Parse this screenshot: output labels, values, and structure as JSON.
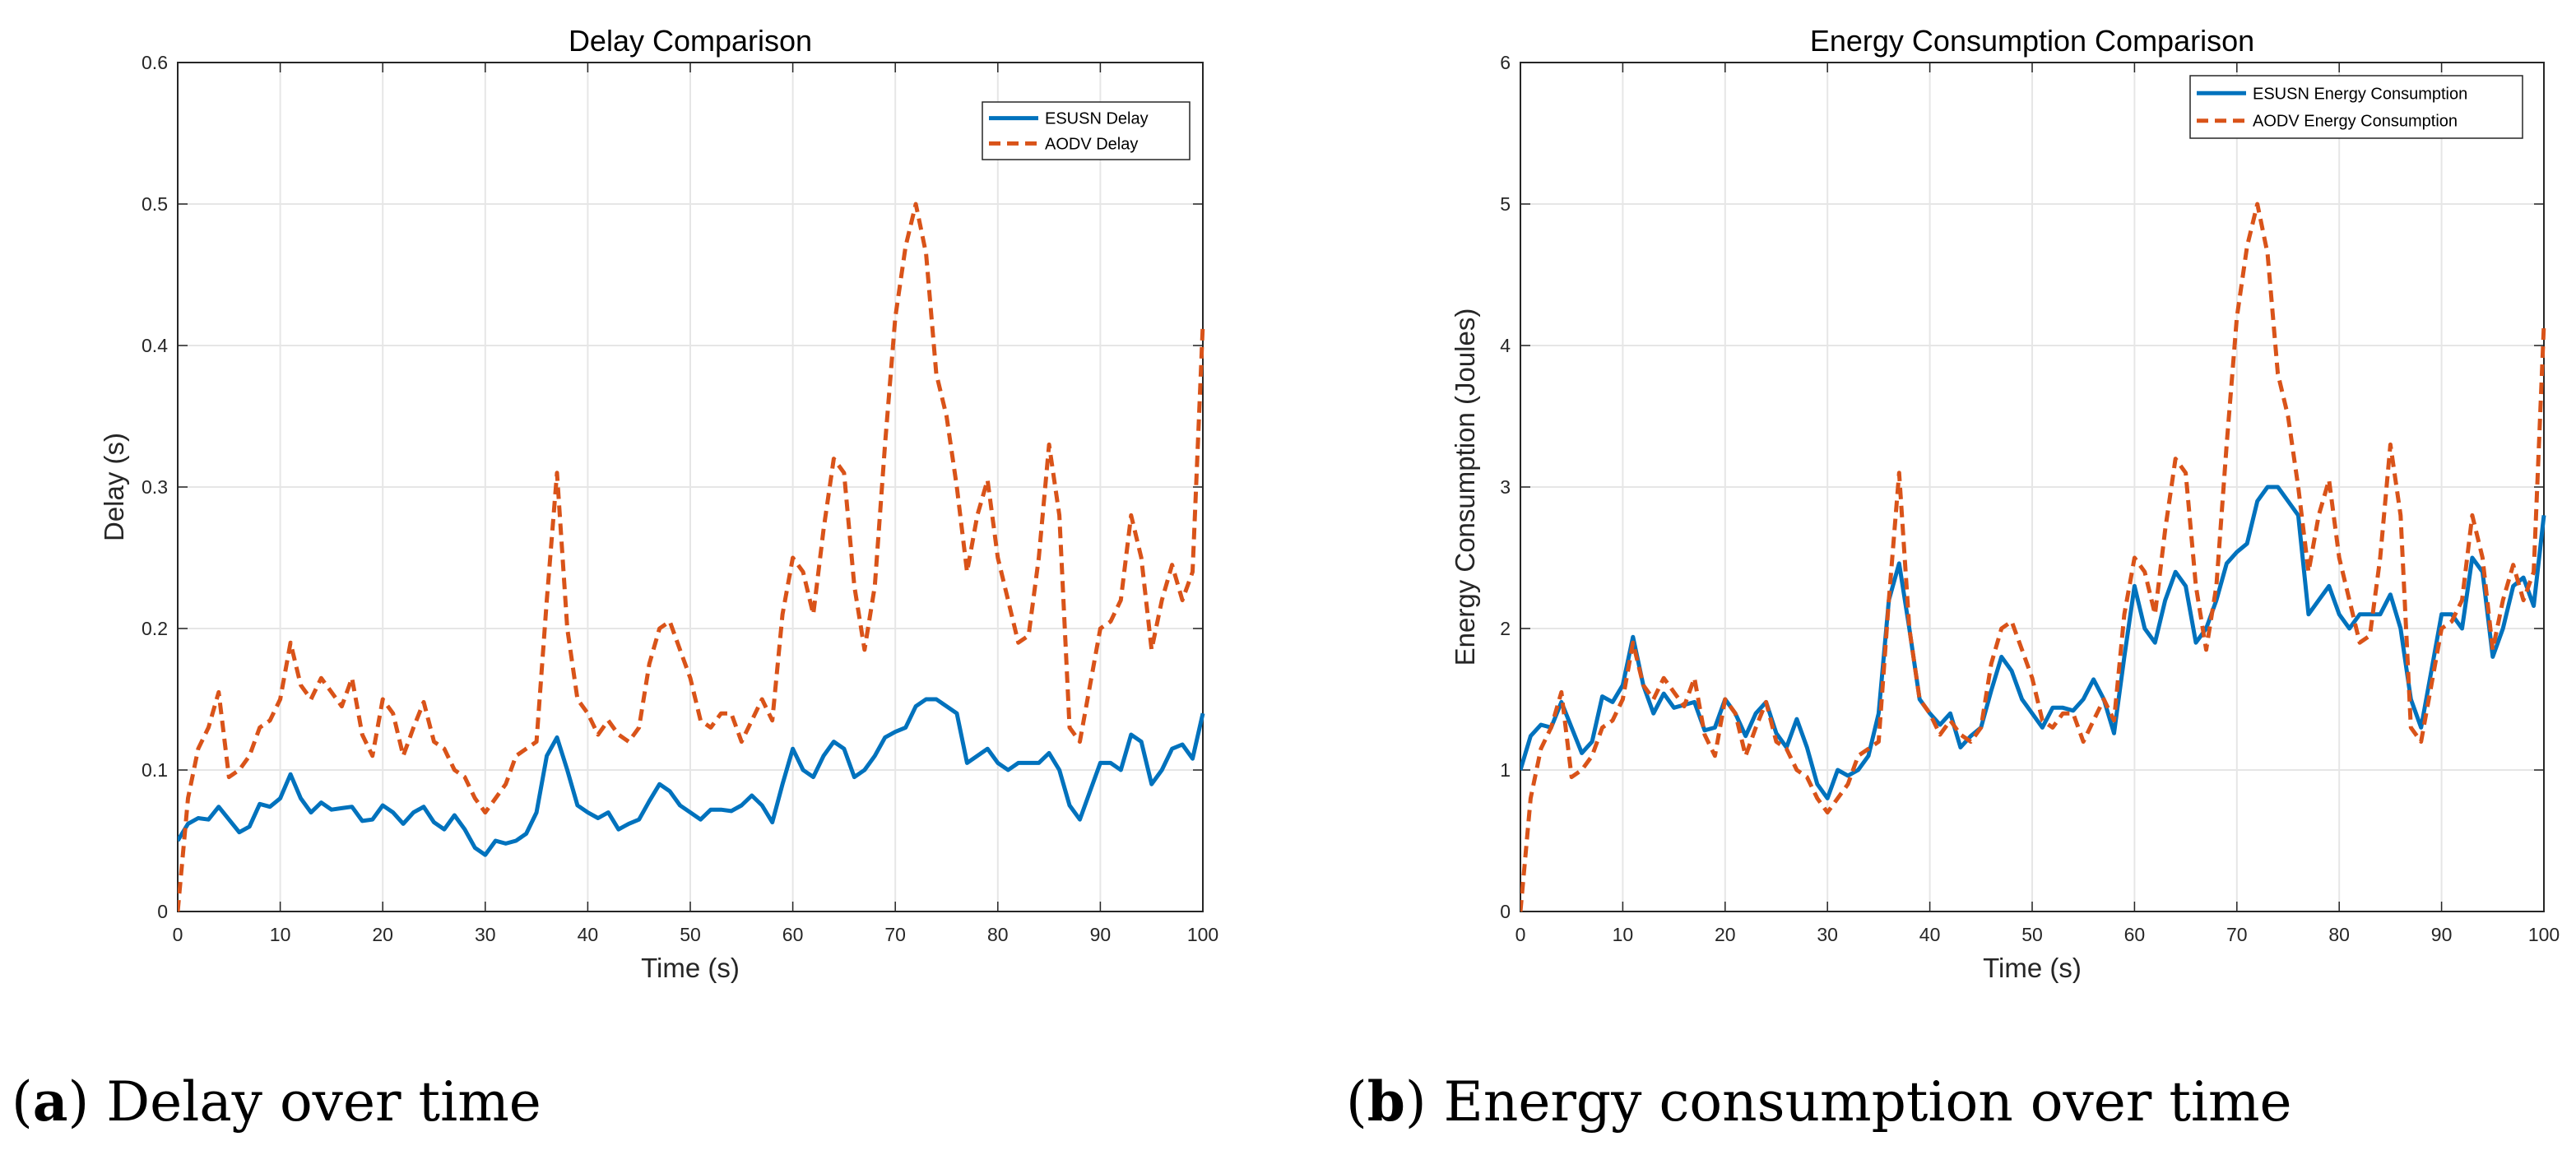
{
  "colors": {
    "esusn": "#0072BD",
    "aodv": "#D95319",
    "grid": "#e6e6e6",
    "axis": "#262626"
  },
  "captions": [
    {
      "label": "a",
      "text": "Delay over time"
    },
    {
      "label": "b",
      "text": "Energy consumption over time"
    }
  ],
  "chart_data": [
    {
      "type": "line",
      "title": "Delay Comparison",
      "xlabel": "Time (s)",
      "ylabel": "Delay (s)",
      "xlim": [
        0,
        100
      ],
      "ylim": [
        0,
        0.6
      ],
      "xticks": [
        0,
        10,
        20,
        30,
        40,
        50,
        60,
        70,
        80,
        90,
        100
      ],
      "yticks": [
        0,
        0.1,
        0.2,
        0.3,
        0.4,
        0.5,
        0.6
      ],
      "grid": true,
      "legend": "top-right",
      "x": [
        0,
        1,
        2,
        3,
        4,
        5,
        6,
        7,
        8,
        9,
        10,
        11,
        12,
        13,
        14,
        15,
        16,
        17,
        18,
        19,
        20,
        21,
        22,
        23,
        24,
        25,
        26,
        27,
        28,
        29,
        30,
        31,
        32,
        33,
        34,
        35,
        36,
        37,
        38,
        39,
        40,
        41,
        42,
        43,
        44,
        45,
        46,
        47,
        48,
        49,
        50,
        51,
        52,
        53,
        54,
        55,
        56,
        57,
        58,
        59,
        60,
        61,
        62,
        63,
        64,
        65,
        66,
        67,
        68,
        69,
        70,
        71,
        72,
        73,
        74,
        75,
        76,
        77,
        78,
        79,
        80,
        81,
        82,
        83,
        84,
        85,
        86,
        87,
        88,
        89,
        90,
        91,
        92,
        93,
        94,
        95,
        96,
        97,
        98,
        99,
        100
      ],
      "series": [
        {
          "name": "ESUSN Delay",
          "style": "solid",
          "values": [
            0.05,
            0.062,
            0.066,
            0.065,
            0.074,
            0.065,
            0.056,
            0.06,
            0.076,
            0.074,
            0.08,
            0.097,
            0.08,
            0.07,
            0.077,
            0.072,
            0.073,
            0.074,
            0.064,
            0.065,
            0.075,
            0.07,
            0.062,
            0.07,
            0.074,
            0.063,
            0.058,
            0.068,
            0.058,
            0.045,
            0.04,
            0.05,
            0.048,
            0.05,
            0.055,
            0.07,
            0.11,
            0.123,
            0.1,
            0.075,
            0.07,
            0.066,
            0.07,
            0.058,
            0.062,
            0.065,
            0.078,
            0.09,
            0.085,
            0.075,
            0.07,
            0.065,
            0.072,
            0.072,
            0.071,
            0.075,
            0.082,
            0.075,
            0.063,
            0.09,
            0.115,
            0.1,
            0.095,
            0.11,
            0.12,
            0.115,
            0.095,
            0.1,
            0.11,
            0.123,
            0.127,
            0.13,
            0.145,
            0.15,
            0.15,
            0.145,
            0.14,
            0.105,
            0.11,
            0.115,
            0.105,
            0.1,
            0.105,
            0.105,
            0.105,
            0.112,
            0.1,
            0.075,
            0.065,
            0.085,
            0.105,
            0.105,
            0.1,
            0.125,
            0.12,
            0.09,
            0.1,
            0.115,
            0.118,
            0.108,
            0.14
          ]
        },
        {
          "name": "AODV Delay",
          "style": "dashed",
          "values": [
            0,
            0.08,
            0.115,
            0.13,
            0.155,
            0.095,
            0.1,
            0.11,
            0.13,
            0.135,
            0.15,
            0.19,
            0.16,
            0.15,
            0.165,
            0.155,
            0.145,
            0.165,
            0.125,
            0.11,
            0.15,
            0.14,
            0.11,
            0.13,
            0.148,
            0.12,
            0.115,
            0.1,
            0.095,
            0.08,
            0.07,
            0.08,
            0.09,
            0.11,
            0.115,
            0.12,
            0.22,
            0.31,
            0.2,
            0.15,
            0.14,
            0.125,
            0.135,
            0.125,
            0.12,
            0.13,
            0.175,
            0.2,
            0.205,
            0.185,
            0.165,
            0.135,
            0.13,
            0.14,
            0.14,
            0.12,
            0.135,
            0.15,
            0.135,
            0.21,
            0.25,
            0.24,
            0.21,
            0.27,
            0.32,
            0.31,
            0.23,
            0.185,
            0.23,
            0.33,
            0.42,
            0.47,
            0.5,
            0.465,
            0.38,
            0.35,
            0.3,
            0.24,
            0.28,
            0.305,
            0.25,
            0.22,
            0.19,
            0.195,
            0.25,
            0.33,
            0.28,
            0.13,
            0.12,
            0.16,
            0.2,
            0.205,
            0.22,
            0.28,
            0.25,
            0.185,
            0.22,
            0.245,
            0.22,
            0.24,
            0.415
          ]
        }
      ]
    },
    {
      "type": "line",
      "title": "Energy Consumption Comparison",
      "xlabel": "Time (s)",
      "ylabel": "Energy Consumption (Joules)",
      "xlim": [
        0,
        100
      ],
      "ylim": [
        0,
        6
      ],
      "xticks": [
        0,
        10,
        20,
        30,
        40,
        50,
        60,
        70,
        80,
        90,
        100
      ],
      "yticks": [
        0,
        1,
        2,
        3,
        4,
        5,
        6
      ],
      "grid": true,
      "legend": "top-right",
      "x": [
        0,
        1,
        2,
        3,
        4,
        5,
        6,
        7,
        8,
        9,
        10,
        11,
        12,
        13,
        14,
        15,
        16,
        17,
        18,
        19,
        20,
        21,
        22,
        23,
        24,
        25,
        26,
        27,
        28,
        29,
        30,
        31,
        32,
        33,
        34,
        35,
        36,
        37,
        38,
        39,
        40,
        41,
        42,
        43,
        44,
        45,
        46,
        47,
        48,
        49,
        50,
        51,
        52,
        53,
        54,
        55,
        56,
        57,
        58,
        59,
        60,
        61,
        62,
        63,
        64,
        65,
        66,
        67,
        68,
        69,
        70,
        71,
        72,
        73,
        74,
        75,
        76,
        77,
        78,
        79,
        80,
        81,
        82,
        83,
        84,
        85,
        86,
        87,
        88,
        89,
        90,
        91,
        92,
        93,
        94,
        95,
        96,
        97,
        98,
        99,
        100
      ],
      "series": [
        {
          "name": "ESUSN Energy Consumption",
          "style": "solid",
          "values": [
            1,
            1.24,
            1.32,
            1.3,
            1.48,
            1.3,
            1.12,
            1.2,
            1.52,
            1.48,
            1.6,
            1.94,
            1.6,
            1.4,
            1.54,
            1.44,
            1.46,
            1.48,
            1.28,
            1.3,
            1.5,
            1.4,
            1.24,
            1.4,
            1.48,
            1.26,
            1.16,
            1.36,
            1.16,
            0.9,
            0.8,
            1,
            0.96,
            1,
            1.1,
            1.4,
            2.2,
            2.46,
            2,
            1.5,
            1.4,
            1.32,
            1.4,
            1.16,
            1.24,
            1.3,
            1.56,
            1.8,
            1.7,
            1.5,
            1.4,
            1.3,
            1.44,
            1.44,
            1.42,
            1.5,
            1.64,
            1.5,
            1.26,
            1.8,
            2.3,
            2,
            1.9,
            2.2,
            2.4,
            2.3,
            1.9,
            2,
            2.2,
            2.46,
            2.54,
            2.6,
            2.9,
            3,
            3,
            2.9,
            2.8,
            2.1,
            2.2,
            2.3,
            2.1,
            2,
            2.1,
            2.1,
            2.1,
            2.24,
            2,
            1.5,
            1.3,
            1.7,
            2.1,
            2.1,
            2,
            2.5,
            2.4,
            1.8,
            2,
            2.3,
            2.36,
            2.16,
            2.8
          ]
        },
        {
          "name": "AODV Energy Consumption",
          "style": "dashed",
          "values": [
            0,
            0.8,
            1.15,
            1.3,
            1.55,
            0.95,
            1,
            1.1,
            1.3,
            1.35,
            1.5,
            1.9,
            1.6,
            1.5,
            1.65,
            1.55,
            1.45,
            1.65,
            1.25,
            1.1,
            1.5,
            1.4,
            1.1,
            1.3,
            1.48,
            1.2,
            1.15,
            1,
            0.95,
            0.8,
            0.7,
            0.8,
            0.9,
            1.1,
            1.15,
            1.2,
            2.2,
            3.1,
            2,
            1.5,
            1.4,
            1.25,
            1.35,
            1.25,
            1.2,
            1.3,
            1.75,
            2,
            2.05,
            1.85,
            1.65,
            1.35,
            1.3,
            1.4,
            1.4,
            1.2,
            1.35,
            1.5,
            1.35,
            2.1,
            2.5,
            2.4,
            2.1,
            2.7,
            3.2,
            3.1,
            2.3,
            1.85,
            2.3,
            3.3,
            4.2,
            4.7,
            5,
            4.65,
            3.8,
            3.5,
            3,
            2.4,
            2.8,
            3.05,
            2.5,
            2.2,
            1.9,
            1.95,
            2.5,
            3.3,
            2.8,
            1.3,
            1.2,
            1.6,
            2,
            2.05,
            2.2,
            2.8,
            2.5,
            1.85,
            2.2,
            2.45,
            2.2,
            2.4,
            4.15
          ]
        }
      ]
    }
  ]
}
